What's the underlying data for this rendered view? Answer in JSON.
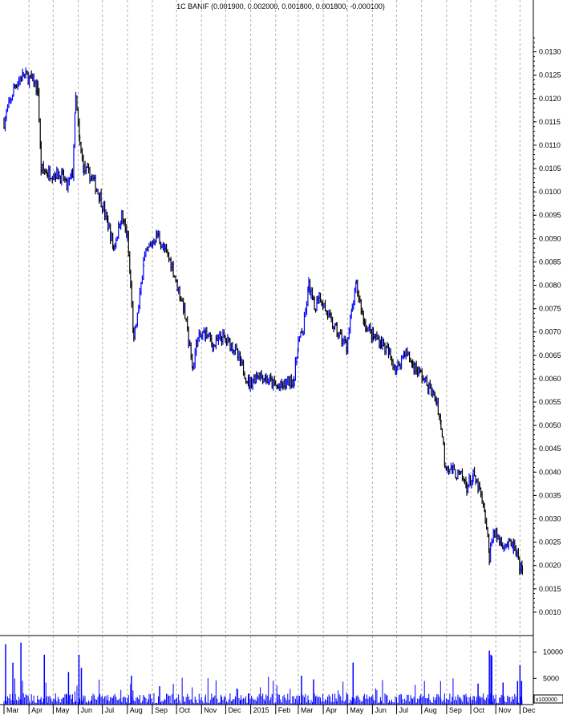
{
  "chart_data": {
    "type": "ohlc",
    "title": "1C BANIF (0.001900, 0.002000, 0.001800, 0.001800, -0.000100)",
    "price_axis": {
      "min": 0.0005,
      "max": 0.0138,
      "ticks": [
        "0.0010",
        "0.0015",
        "0.0020",
        "0.0025",
        "0.0030",
        "0.0035",
        "0.0040",
        "0.0045",
        "0.0050",
        "0.0055",
        "0.0060",
        "0.0065",
        "0.0070",
        "0.0075",
        "0.0080",
        "0.0085",
        "0.0090",
        "0.0095",
        "0.0100",
        "0.0105",
        "0.0110",
        "0.0115",
        "0.0120",
        "0.0125",
        "0.0130"
      ],
      "side": "right"
    },
    "volume_axis": {
      "min": 0,
      "max": 13000,
      "ticks": [
        "5000",
        "10000"
      ],
      "unit_label": "x100000"
    },
    "x_axis_labels": [
      {
        "label": "Mar",
        "date": "2014-03-01"
      },
      {
        "label": "Apr",
        "date": "2014-04-01"
      },
      {
        "label": "May",
        "date": "2014-05-01"
      },
      {
        "label": "Jun",
        "date": "2014-06-01"
      },
      {
        "label": "Jul",
        "date": "2014-07-01"
      },
      {
        "label": "Aug",
        "date": "2014-08-01"
      },
      {
        "label": "Sep",
        "date": "2014-09-01"
      },
      {
        "label": "Oct",
        "date": "2014-10-01"
      },
      {
        "label": "Nov",
        "date": "2014-11-01"
      },
      {
        "label": "Dec",
        "date": "2014-12-01"
      },
      {
        "label": "2015",
        "date": "2015-01-01"
      },
      {
        "label": "Feb",
        "date": "2015-02-01"
      },
      {
        "label": "Mar",
        "date": "2015-03-01"
      },
      {
        "label": "Apr",
        "date": "2015-04-01"
      },
      {
        "label": "May",
        "date": "2015-05-01"
      },
      {
        "label": "Jun",
        "date": "2015-06-01"
      },
      {
        "label": "Jul",
        "date": "2015-07-01"
      },
      {
        "label": "Aug",
        "date": "2015-08-01"
      },
      {
        "label": "Sep",
        "date": "2015-09-01"
      },
      {
        "label": "Oct",
        "date": "2015-10-01"
      },
      {
        "label": "Nov",
        "date": "2015-11-01"
      },
      {
        "label": "Dec",
        "date": "2015-12-01"
      }
    ],
    "date_range": [
      "2014-03-01",
      "2015-12-04"
    ],
    "grid": "vertical dashed at month starts",
    "colors": {
      "up": "#0000ff",
      "down": "#000000",
      "volume": "#0000ff",
      "grid": "#b0b0b0"
    },
    "close_series": [
      [
        "2014-03-01",
        0.0115
      ],
      [
        "2014-03-15",
        0.0123
      ],
      [
        "2014-03-25",
        0.0125
      ],
      [
        "2014-04-04",
        0.0124
      ],
      [
        "2014-04-12",
        0.0122
      ],
      [
        "2014-04-16",
        0.0105
      ],
      [
        "2014-04-24",
        0.0104
      ],
      [
        "2014-05-04",
        0.0104
      ],
      [
        "2014-05-14",
        0.0103
      ],
      [
        "2014-05-18",
        0.0101
      ],
      [
        "2014-05-25",
        0.0104
      ],
      [
        "2014-05-29",
        0.012
      ],
      [
        "2014-06-03",
        0.011
      ],
      [
        "2014-06-08",
        0.0105
      ],
      [
        "2014-06-18",
        0.0103
      ],
      [
        "2014-06-28",
        0.0099
      ],
      [
        "2014-07-08",
        0.0093
      ],
      [
        "2014-07-15",
        0.0088
      ],
      [
        "2014-07-25",
        0.0095
      ],
      [
        "2014-08-01",
        0.009
      ],
      [
        "2014-08-05",
        0.008
      ],
      [
        "2014-08-09",
        0.0068
      ],
      [
        "2014-08-15",
        0.0075
      ],
      [
        "2014-08-21",
        0.0085
      ],
      [
        "2014-08-28",
        0.0088
      ],
      [
        "2014-09-07",
        0.0091
      ],
      [
        "2014-09-17",
        0.0087
      ],
      [
        "2014-09-24",
        0.0085
      ],
      [
        "2014-10-02",
        0.008
      ],
      [
        "2014-10-10",
        0.0075
      ],
      [
        "2014-10-16",
        0.0068
      ],
      [
        "2014-10-21",
        0.0062
      ],
      [
        "2014-10-26",
        0.0068
      ],
      [
        "2014-11-06",
        0.007
      ],
      [
        "2014-11-16",
        0.0067
      ],
      [
        "2014-11-26",
        0.0069
      ],
      [
        "2014-12-10",
        0.0067
      ],
      [
        "2014-12-20",
        0.0063
      ],
      [
        "2014-12-30",
        0.0059
      ],
      [
        "2015-01-10",
        0.0061
      ],
      [
        "2015-01-20",
        0.006
      ],
      [
        "2015-02-04",
        0.0058
      ],
      [
        "2015-02-24",
        0.006
      ],
      [
        "2015-03-01",
        0.0068
      ],
      [
        "2015-03-07",
        0.007
      ],
      [
        "2015-03-14",
        0.008
      ],
      [
        "2015-03-21",
        0.0075
      ],
      [
        "2015-03-27",
        0.0078
      ],
      [
        "2015-04-08",
        0.0073
      ],
      [
        "2015-04-18",
        0.007
      ],
      [
        "2015-04-30",
        0.0067
      ],
      [
        "2015-05-07",
        0.0075
      ],
      [
        "2015-05-12",
        0.008
      ],
      [
        "2015-05-22",
        0.0072
      ],
      [
        "2015-06-02",
        0.0069
      ],
      [
        "2015-06-12",
        0.0068
      ],
      [
        "2015-06-22",
        0.0065
      ],
      [
        "2015-07-01",
        0.0062
      ],
      [
        "2015-07-11",
        0.0066
      ],
      [
        "2015-07-21",
        0.0063
      ],
      [
        "2015-07-31",
        0.0061
      ],
      [
        "2015-08-10",
        0.0058
      ],
      [
        "2015-08-20",
        0.0055
      ],
      [
        "2015-08-25",
        0.005
      ],
      [
        "2015-08-30",
        0.0042
      ],
      [
        "2015-09-09",
        0.004
      ],
      [
        "2015-09-19",
        0.0039
      ],
      [
        "2015-09-26",
        0.0037
      ],
      [
        "2015-10-04",
        0.0039
      ],
      [
        "2015-10-12",
        0.0036
      ],
      [
        "2015-10-19",
        0.003
      ],
      [
        "2015-10-24",
        0.0022
      ],
      [
        "2015-10-29",
        0.0027
      ],
      [
        "2015-11-08",
        0.0025
      ],
      [
        "2015-11-23",
        0.0024
      ],
      [
        "2015-12-04",
        0.0018
      ]
    ],
    "volume_spikes": [
      [
        "2014-03-03",
        11500
      ],
      [
        "2014-03-12",
        8000
      ],
      [
        "2014-03-22",
        11800
      ],
      [
        "2014-04-20",
        9500
      ],
      [
        "2014-05-20",
        6200
      ],
      [
        "2014-06-02",
        9500
      ],
      [
        "2014-06-05",
        7000
      ],
      [
        "2014-08-06",
        5500
      ],
      [
        "2014-09-10",
        3500
      ],
      [
        "2015-03-05",
        5500
      ],
      [
        "2015-03-20",
        4800
      ],
      [
        "2015-05-08",
        8000
      ],
      [
        "2015-10-10",
        4000
      ],
      [
        "2015-10-24",
        10300
      ],
      [
        "2015-10-26",
        9500
      ],
      [
        "2015-10-27",
        9300
      ],
      [
        "2015-11-10",
        4200
      ],
      [
        "2015-11-28",
        4500
      ],
      [
        "2015-12-01",
        7500
      ],
      [
        "2015-12-03",
        4500
      ]
    ],
    "volume_typical": 1200
  }
}
